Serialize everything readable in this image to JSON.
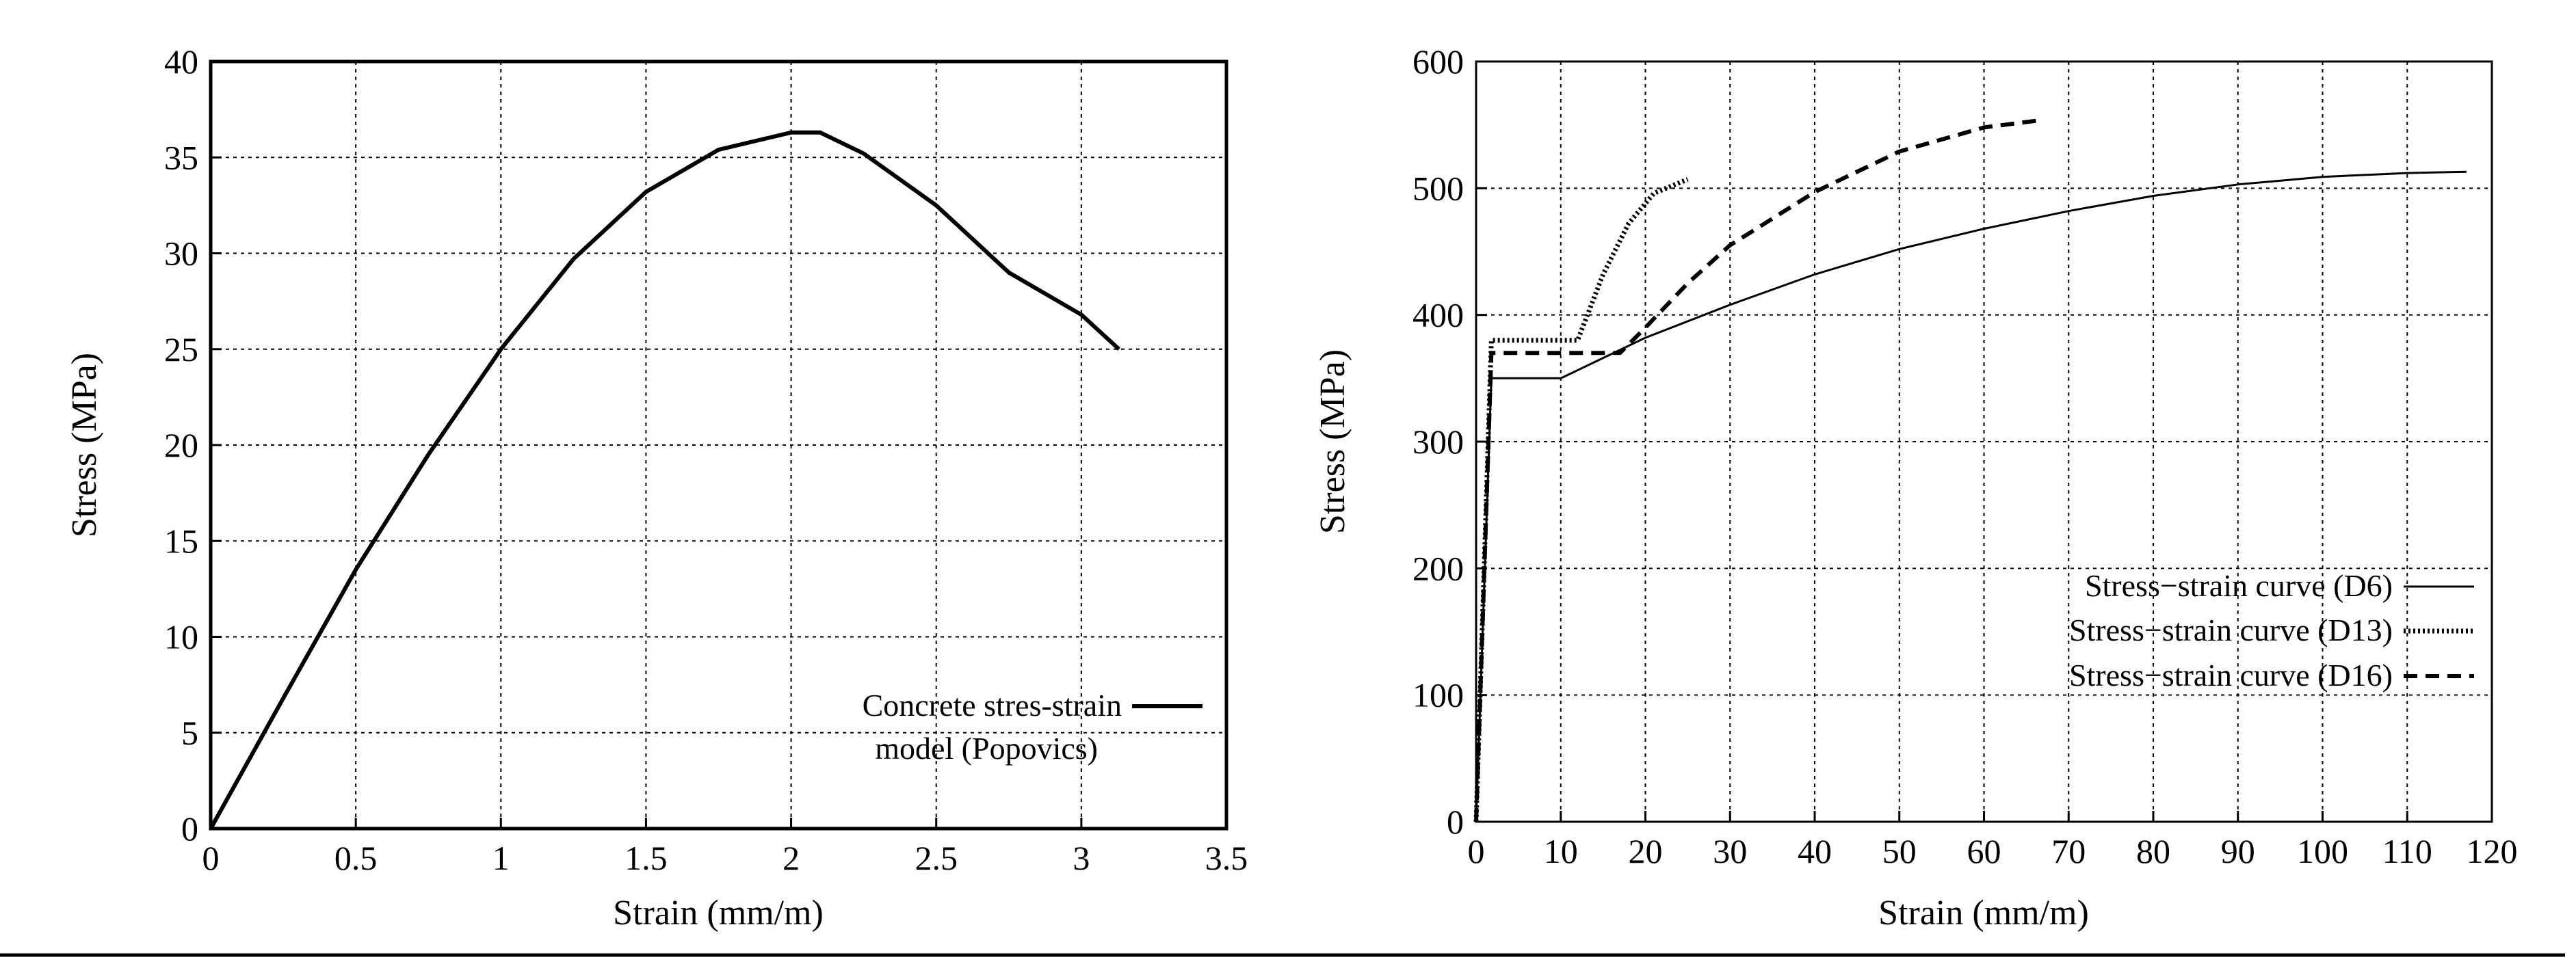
{
  "chart_data": [
    {
      "type": "line",
      "title": "",
      "xlabel": "Strain (mm/m)",
      "ylabel": "Stress (MPa)",
      "xlim": [
        0,
        3.5
      ],
      "ylim": [
        0,
        40
      ],
      "xticks": [
        "0",
        "0.5",
        "1",
        "1.5",
        "2",
        "2.5",
        "3",
        "3.5"
      ],
      "yticks": [
        "0",
        "5",
        "10",
        "15",
        "20",
        "25",
        "30",
        "35",
        "40"
      ],
      "grid": true,
      "legend_position": "bottom-right",
      "legend": [
        "Concrete stres-strain",
        "model  (Popovics)"
      ],
      "series": [
        {
          "name": "Concrete stres-strain model (Popovics)",
          "style": "solid",
          "x": [
            0,
            0.25,
            0.5,
            0.75,
            1.0,
            1.25,
            1.5,
            1.75,
            2.0,
            2.1,
            2.25,
            2.5,
            2.75,
            3.0,
            3.13
          ],
          "y": [
            0,
            6.8,
            13.5,
            19.5,
            25.0,
            29.7,
            33.2,
            35.4,
            36.3,
            36.3,
            35.2,
            32.5,
            29.0,
            26.8,
            25.0
          ]
        }
      ]
    },
    {
      "type": "line",
      "title": "",
      "xlabel": "Strain (mm/m)",
      "ylabel": "Stress (MPa)",
      "xlim": [
        0,
        120
      ],
      "ylim": [
        0,
        600
      ],
      "xticks": [
        "0",
        "10",
        "20",
        "30",
        "40",
        "50",
        "60",
        "70",
        "80",
        "90",
        "100",
        "110",
        "120"
      ],
      "yticks": [
        "0",
        "100",
        "200",
        "300",
        "400",
        "500",
        "600"
      ],
      "grid": true,
      "legend_position": "bottom-right",
      "series": [
        {
          "name": "Stress−strain curve (D6)",
          "style": "solid",
          "x": [
            0,
            1.8,
            10,
            20,
            30,
            40,
            50,
            60,
            70,
            80,
            90,
            100,
            110,
            117
          ],
          "y": [
            0,
            350,
            350,
            382,
            408,
            432,
            452,
            468,
            482,
            494,
            503,
            509,
            512,
            513
          ]
        },
        {
          "name": "Stress−strain curve (D13)",
          "style": "dotted",
          "x": [
            0,
            1.8,
            12,
            15,
            18,
            21,
            25
          ],
          "y": [
            0,
            380,
            380,
            432,
            472,
            496,
            507
          ]
        },
        {
          "name": "Stress−strain curve (D16)",
          "style": "dashed",
          "x": [
            0,
            1.8,
            17,
            20,
            25,
            30,
            40,
            50,
            60,
            67
          ],
          "y": [
            0,
            370,
            370,
            390,
            425,
            455,
            497,
            529,
            548,
            554
          ]
        }
      ]
    }
  ]
}
